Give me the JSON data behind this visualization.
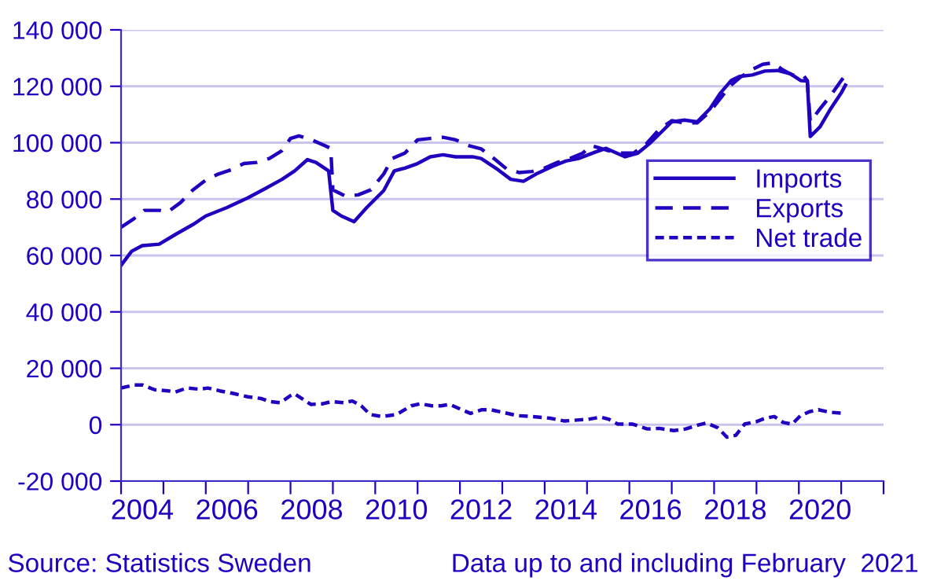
{
  "chart_data": {
    "type": "line",
    "ylim": [
      -20000,
      140000
    ],
    "yticks": [
      {
        "value": -20000,
        "label": "-20 000"
      },
      {
        "value": 0,
        "label": "0"
      },
      {
        "value": 20000,
        "label": "20 000"
      },
      {
        "value": 40000,
        "label": "40 000"
      },
      {
        "value": 60000,
        "label": "60 000"
      },
      {
        "value": 80000,
        "label": "80 000"
      },
      {
        "value": 100000,
        "label": "100 000"
      },
      {
        "value": 120000,
        "label": "120 000"
      },
      {
        "value": 140000,
        "label": "140 000"
      }
    ],
    "xlim": [
      2004,
      2022
    ],
    "xticks": [
      {
        "value": 2004,
        "label": null
      },
      {
        "value": 2005,
        "label": null
      },
      {
        "value": 2006,
        "label": null
      },
      {
        "value": 2007,
        "label": null
      },
      {
        "value": 2008,
        "label": null
      },
      {
        "value": 2009,
        "label": null
      },
      {
        "value": 2010,
        "label": null
      },
      {
        "value": 2011,
        "label": null
      },
      {
        "value": 2012,
        "label": null
      },
      {
        "value": 2013,
        "label": null
      },
      {
        "value": 2014,
        "label": null
      },
      {
        "value": 2015,
        "label": null
      },
      {
        "value": 2016,
        "label": null
      },
      {
        "value": 2017,
        "label": null
      },
      {
        "value": 2018,
        "label": null
      },
      {
        "value": 2019,
        "label": null
      },
      {
        "value": 2020,
        "label": null
      },
      {
        "value": 2021,
        "label": null
      },
      {
        "value": 2022,
        "label": null
      },
      {
        "value": 2004.5,
        "label": "2004"
      },
      {
        "value": 2006.5,
        "label": "2006"
      },
      {
        "value": 2008.5,
        "label": "2008"
      },
      {
        "value": 2010.5,
        "label": "2010"
      },
      {
        "value": 2012.5,
        "label": "2012"
      },
      {
        "value": 2014.5,
        "label": "2014"
      },
      {
        "value": 2016.5,
        "label": "2016"
      },
      {
        "value": 2018.5,
        "label": "2018"
      },
      {
        "value": 2020.5,
        "label": "2020"
      }
    ],
    "grid": "y",
    "legend": "right",
    "annotations": [
      "Source: Statistics Sweden",
      "Data up to and including February  2021"
    ],
    "series": [
      {
        "name": "Imports",
        "color": "#2200c0",
        "line_style": "solid",
        "x": [
          2004.0,
          2004.25,
          2004.5,
          2004.9,
          2005.3,
          2005.7,
          2006.0,
          2006.5,
          2007.0,
          2007.4,
          2007.8,
          2008.1,
          2008.4,
          2008.6,
          2008.9,
          2009.0,
          2009.2,
          2009.5,
          2009.8,
          2010.2,
          2010.45,
          2010.7,
          2011.0,
          2011.3,
          2011.6,
          2011.9,
          2012.3,
          2012.5,
          2012.9,
          2013.2,
          2013.5,
          2013.8,
          2014.2,
          2014.5,
          2014.8,
          2015.2,
          2015.45,
          2015.7,
          2015.9,
          2016.2,
          2016.5,
          2016.75,
          2017.0,
          2017.3,
          2017.6,
          2017.9,
          2018.15,
          2018.4,
          2018.6,
          2018.9,
          2019.2,
          2019.5,
          2019.8,
          2020.05,
          2020.2,
          2020.27,
          2020.5,
          2020.75,
          2021.0,
          2021.1
        ],
        "values": [
          56500,
          61500,
          63500,
          64000,
          67600,
          71000,
          74000,
          77000,
          80500,
          83700,
          87000,
          90000,
          94000,
          93000,
          90000,
          76000,
          74000,
          72000,
          77000,
          83000,
          90000,
          91000,
          92600,
          95000,
          95700,
          95000,
          95000,
          94400,
          90400,
          87000,
          86300,
          88900,
          91700,
          93500,
          94400,
          96700,
          98000,
          96300,
          95000,
          96300,
          100000,
          103700,
          107400,
          108000,
          107400,
          112000,
          117600,
          122000,
          123500,
          124000,
          125400,
          125600,
          124400,
          122000,
          121900,
          102200,
          105600,
          112000,
          117600,
          120400
        ]
      },
      {
        "name": "Exports",
        "color": "#2200c0",
        "line_style": "dashed",
        "x": [
          2004.0,
          2004.3,
          2004.55,
          2004.9,
          2005.1,
          2005.4,
          2005.7,
          2006.0,
          2006.3,
          2006.6,
          2006.9,
          2007.2,
          2007.5,
          2007.8,
          2008.0,
          2008.2,
          2008.5,
          2008.8,
          2008.95,
          2009.0,
          2009.3,
          2009.6,
          2009.9,
          2010.2,
          2010.4,
          2010.7,
          2011.0,
          2011.3,
          2011.6,
          2011.9,
          2012.2,
          2012.5,
          2012.8,
          2013.1,
          2013.4,
          2013.7,
          2014.0,
          2014.3,
          2014.6,
          2014.9,
          2015.1,
          2015.5,
          2015.8,
          2016.1,
          2016.4,
          2016.7,
          2017.0,
          2017.3,
          2017.6,
          2017.9,
          2018.2,
          2018.4,
          2018.6,
          2018.9,
          2019.15,
          2019.4,
          2019.6,
          2019.85,
          2020.1,
          2020.2,
          2020.27,
          2020.5,
          2020.75,
          2021.0,
          2021.1
        ],
        "values": [
          70000,
          73000,
          76000,
          76000,
          75400,
          78700,
          83300,
          86700,
          88900,
          90400,
          92600,
          93000,
          94400,
          97200,
          101500,
          102400,
          101000,
          99000,
          98000,
          83300,
          81000,
          81500,
          83300,
          88900,
          94400,
          96300,
          101000,
          101500,
          101900,
          101000,
          99000,
          97800,
          94400,
          90700,
          89400,
          89800,
          91000,
          93000,
          94400,
          96300,
          99000,
          97200,
          96300,
          96300,
          99600,
          104600,
          107800,
          107000,
          107000,
          111000,
          116700,
          120400,
          123000,
          126000,
          127800,
          128300,
          126000,
          124000,
          124000,
          122000,
          107400,
          112000,
          116700,
          122000,
          124000
        ]
      },
      {
        "name": "Net trade",
        "color": "#2200c0",
        "line_style": "dotted",
        "x": [
          2004.0,
          2004.31,
          2004.5,
          2004.79,
          2005.11,
          2005.28,
          2005.56,
          2005.84,
          2006.05,
          2006.33,
          2006.67,
          2006.99,
          2007.3,
          2007.51,
          2007.76,
          2008.0,
          2008.09,
          2008.48,
          2008.76,
          2008.97,
          2009.25,
          2009.46,
          2009.67,
          2009.88,
          2010.16,
          2010.5,
          2010.85,
          2011.06,
          2011.34,
          2011.55,
          2011.76,
          2012.04,
          2012.25,
          2012.52,
          2012.73,
          2013.01,
          2013.36,
          2013.71,
          2014.13,
          2014.47,
          2014.82,
          2015.03,
          2015.31,
          2015.52,
          2015.73,
          2016.08,
          2016.42,
          2016.7,
          2017.05,
          2017.33,
          2017.61,
          2017.82,
          2018.09,
          2018.3,
          2018.51,
          2018.72,
          2019.0,
          2019.21,
          2019.42,
          2019.63,
          2019.84,
          2020.04,
          2020.25,
          2020.46,
          2020.74,
          2021.09
        ],
        "values": [
          13000,
          14100,
          14100,
          12400,
          12000,
          11600,
          13000,
          12600,
          13000,
          12000,
          11000,
          9900,
          9300,
          8200,
          7800,
          10300,
          11000,
          7200,
          7400,
          8200,
          7800,
          8400,
          6700,
          3600,
          2900,
          3600,
          6700,
          7400,
          6700,
          6700,
          7200,
          5300,
          4000,
          5300,
          5300,
          4400,
          3200,
          2900,
          2300,
          1300,
          1700,
          1900,
          2700,
          1900,
          200,
          200,
          -1500,
          -1300,
          -2100,
          -1500,
          -200,
          600,
          -1100,
          -4400,
          -3800,
          200,
          1100,
          2300,
          2900,
          800,
          200,
          3200,
          4600,
          5300,
          4400,
          4000
        ]
      }
    ]
  }
}
